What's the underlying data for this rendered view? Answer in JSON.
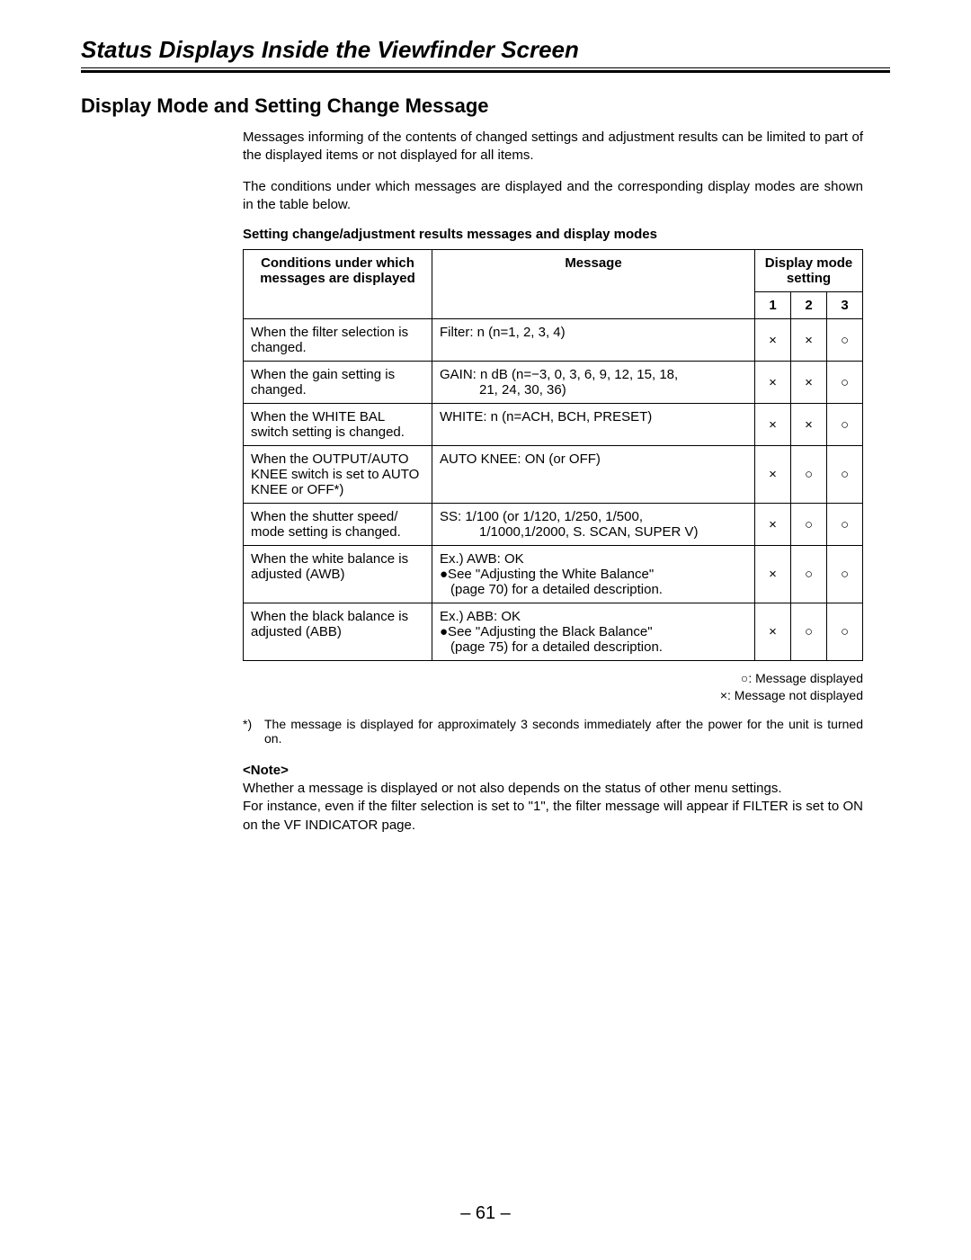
{
  "page_title": "Status Displays Inside the Viewfinder Screen",
  "section_title": "Display Mode and Setting Change Message",
  "intro_p1": "Messages informing of the contents of changed settings and adjustment results can be limited to part of the displayed items or not displayed for all items.",
  "intro_p2": "The conditions under which messages are displayed and the corresponding display modes are shown in the table below.",
  "table_heading": "Setting change/adjustment results messages and display modes",
  "headers": {
    "conditions": "Conditions under which messages are displayed",
    "message": "Message",
    "display_mode": "Display mode setting",
    "m1": "1",
    "m2": "2",
    "m3": "3"
  },
  "symbols": {
    "x": "×",
    "o": "○"
  },
  "rows": [
    {
      "cond": "When the filter selection is changed.",
      "msg_l1": "Filter:  n (n=1, 2, 3, 4)",
      "m1": "×",
      "m2": "×",
      "m3": "○"
    },
    {
      "cond": "When the gain setting is changed.",
      "msg_l1": "GAIN:  n dB (n=−3, 0, 3, 6, 9, 12, 15, 18,",
      "msg_l2": "21, 24, 30, 36)",
      "m1": "×",
      "m2": "×",
      "m3": "○"
    },
    {
      "cond": "When the WHITE BAL switch setting is changed.",
      "msg_l1": "WHITE:  n (n=ACH, BCH, PRESET)",
      "m1": "×",
      "m2": "×",
      "m3": "○"
    },
    {
      "cond": "When the OUTPUT/AUTO KNEE switch is set to AUTO KNEE or OFF*)",
      "msg_l1": "AUTO KNEE:  ON (or OFF)",
      "m1": "×",
      "m2": "○",
      "m3": "○"
    },
    {
      "cond": "When the shutter speed/ mode setting is changed.",
      "msg_l1": "SS:  1/100 (or 1/120, 1/250, 1/500,",
      "msg_l2": "1/1000,1/2000, S. SCAN, SUPER V)",
      "m1": "×",
      "m2": "○",
      "m3": "○"
    },
    {
      "cond": "When the white balance is adjusted (AWB)",
      "msg_l1": "Ex.) AWB:  OK",
      "msg_b1": "●See \"Adjusting the White Balance\"",
      "msg_b2": "(page 70) for a detailed description.",
      "m1": "×",
      "m2": "○",
      "m3": "○"
    },
    {
      "cond": "When the black balance is adjusted (ABB)",
      "msg_l1": "Ex.) ABB:  OK",
      "msg_b1": "●See \"Adjusting the Black Balance\"",
      "msg_b2": "(page 75) for a detailed description.",
      "m1": "×",
      "m2": "○",
      "m3": "○"
    }
  ],
  "legend": {
    "displayed": "○:  Message displayed",
    "not_displayed": "×:  Message not displayed"
  },
  "footnote_marker": "*)",
  "footnote_text": "The message is displayed for approximately 3 seconds immediately after the power for the unit is turned on.",
  "note_label": "<Note>",
  "note_p1": "Whether a message is displayed or not also depends on the status of other menu settings.",
  "note_p2": "For instance, even if the filter selection is set to \"1\", the filter message will appear if FILTER is set to ON on the VF INDICATOR page.",
  "page_number": "– 61 –"
}
